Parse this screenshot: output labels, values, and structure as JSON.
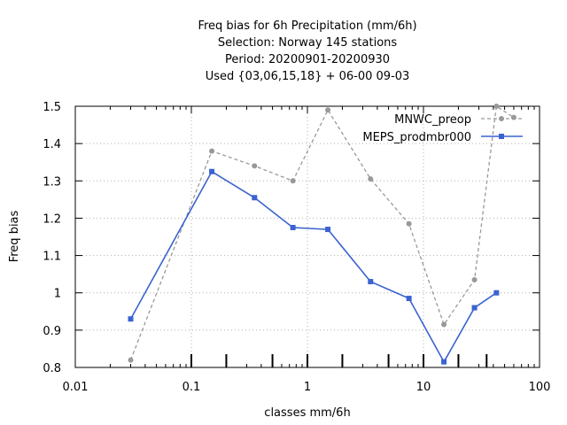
{
  "chart_data": {
    "type": "line",
    "title_lines": [
      "Freq bias  for 6h Precipitation (mm/6h)",
      "Selection: Norway    145 stations",
      "Period: 20200901-20200930",
      "Used {03,06,15,18} + 06-00 09-03"
    ],
    "xlabel": "classes mm/6h",
    "ylabel": "Freq bias",
    "x_scale": "log",
    "xlim": [
      0.01,
      100
    ],
    "ylim": [
      0.8,
      1.5
    ],
    "x_ticks": [
      0.01,
      0.1,
      1,
      10,
      100
    ],
    "x_tick_labels": [
      "0.01",
      "0.1",
      "1",
      "10",
      "100"
    ],
    "y_ticks": [
      0.8,
      0.9,
      1.0,
      1.1,
      1.2,
      1.3,
      1.4,
      1.5
    ],
    "y_tick_labels": [
      "0.8",
      "0.9",
      "1",
      "1.1",
      "1.2",
      "1.3",
      "1.4",
      "1.5"
    ],
    "class_markers": [
      0.1,
      0.2,
      0.5,
      1,
      2,
      5,
      10,
      20,
      35
    ],
    "grid": true,
    "legend_position": "top-right",
    "series": [
      {
        "name": "MNWC_preop",
        "color": "#999999",
        "style": "dashed",
        "x": [
          0.03,
          0.15,
          0.35,
          0.75,
          1.5,
          3.5,
          7.5,
          15,
          27.5,
          42.5,
          60
        ],
        "y": [
          0.82,
          1.38,
          1.34,
          1.3,
          1.49,
          1.305,
          1.185,
          0.915,
          1.035,
          1.5,
          1.47
        ]
      },
      {
        "name": "MEPS_prodmbr000",
        "color": "#3a63d1",
        "style": "solid",
        "x": [
          0.03,
          0.15,
          0.35,
          0.75,
          1.5,
          3.5,
          7.5,
          15,
          27.5,
          42.5
        ],
        "y": [
          0.93,
          1.325,
          1.255,
          1.175,
          1.17,
          1.03,
          0.985,
          0.815,
          0.96,
          1.0
        ]
      }
    ]
  }
}
